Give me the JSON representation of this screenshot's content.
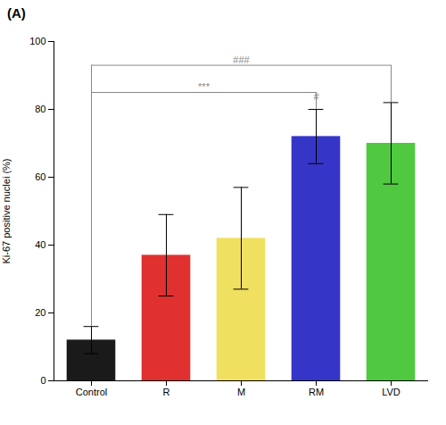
{
  "chart_data": {
    "type": "bar",
    "title": "(A)",
    "categories": [
      "Control",
      "R",
      "M",
      "RM",
      "LVD"
    ],
    "values": [
      12,
      37,
      42,
      72,
      70
    ],
    "errors": [
      4,
      12,
      15,
      8,
      12
    ],
    "colors": [
      "#1a1a1a",
      "#e03030",
      "#f0e060",
      "#3535c8",
      "#50c840"
    ],
    "ylabel": "Ki-67 positive nuclei (%)",
    "ylim": [
      0,
      100
    ],
    "yticks": [
      0,
      20,
      40,
      60,
      80,
      100
    ],
    "grid": false,
    "annotations": [
      {
        "text": "***",
        "from": "Control",
        "to": "RM",
        "y": 85
      },
      {
        "text": "###",
        "from": "Control",
        "to": "LVD",
        "y": 93
      },
      {
        "text": "#",
        "at": "RM",
        "y": 82
      }
    ]
  }
}
